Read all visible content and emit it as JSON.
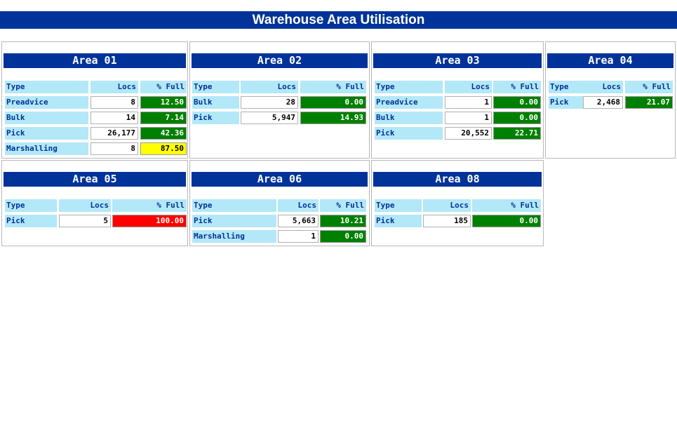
{
  "page": {
    "title": "Warehouse Area Utilisation"
  },
  "table_headers": {
    "type": "Type",
    "locs": "Locs",
    "pct": "% Full"
  },
  "colors": {
    "ok": "#008000",
    "warn": "#ffff00",
    "full": "#ff0000",
    "header": "#003399",
    "label_bg": "#b3e8f8"
  },
  "areas": [
    {
      "name": "Area 01",
      "rows": [
        {
          "type": "Preadvice",
          "locs": "8",
          "pct": "12.50",
          "status": "green"
        },
        {
          "type": "Bulk",
          "locs": "14",
          "pct": "7.14",
          "status": "green"
        },
        {
          "type": "Pick",
          "locs": "26,177",
          "pct": "42.36",
          "status": "green"
        },
        {
          "type": "Marshalling",
          "locs": "8",
          "pct": "87.50",
          "status": "yellow"
        }
      ]
    },
    {
      "name": "Area 02",
      "rows": [
        {
          "type": "Bulk",
          "locs": "28",
          "pct": "0.00",
          "status": "green"
        },
        {
          "type": "Pick",
          "locs": "5,947",
          "pct": "14.93",
          "status": "green"
        }
      ]
    },
    {
      "name": "Area 03",
      "rows": [
        {
          "type": "Preadvice",
          "locs": "1",
          "pct": "0.00",
          "status": "green"
        },
        {
          "type": "Bulk",
          "locs": "1",
          "pct": "0.00",
          "status": "green"
        },
        {
          "type": "Pick",
          "locs": "20,552",
          "pct": "22.71",
          "status": "green"
        }
      ]
    },
    {
      "name": "Area 04",
      "rows": [
        {
          "type": "Pick",
          "locs": "2,468",
          "pct": "21.07",
          "status": "green"
        }
      ]
    },
    {
      "name": "Area 05",
      "rows": [
        {
          "type": "Pick",
          "locs": "5",
          "pct": "100.00",
          "status": "red"
        }
      ]
    },
    {
      "name": "Area 06",
      "rows": [
        {
          "type": "Pick",
          "locs": "5,663",
          "pct": "10.21",
          "status": "green"
        },
        {
          "type": "Marshalling",
          "locs": "1",
          "pct": "0.00",
          "status": "green"
        }
      ]
    },
    {
      "name": "Area 08",
      "rows": [
        {
          "type": "Pick",
          "locs": "185",
          "pct": "0.00",
          "status": "green"
        }
      ]
    }
  ]
}
